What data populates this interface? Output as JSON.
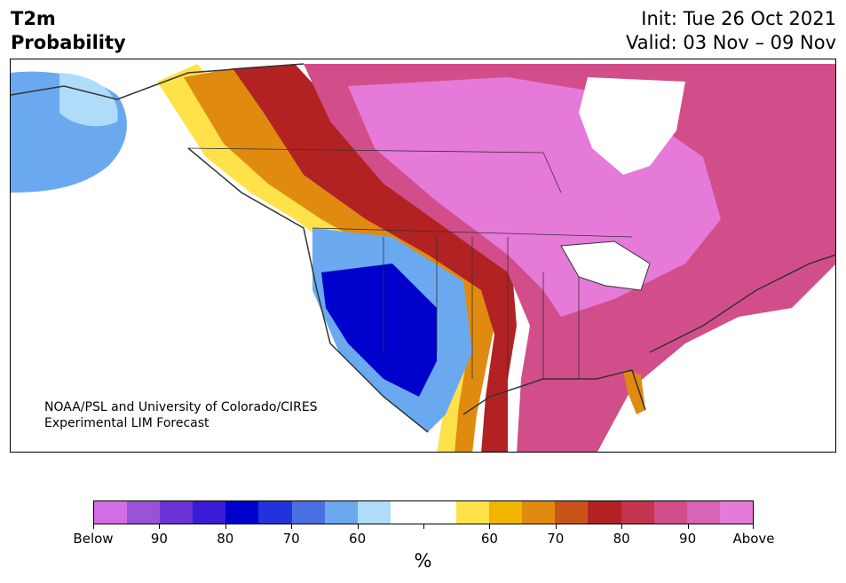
{
  "header": {
    "title_line1": "T2m",
    "title_line2": "Probability",
    "init_text": "Init: Tue 26 Oct 2021",
    "valid_text": "Valid: 03 Nov – 09 Nov"
  },
  "map": {
    "credit_line1": "NOAA/PSL and University of Colorado/CIRES",
    "credit_line2": "Experimental LIM Forecast"
  },
  "colorbar": {
    "colors": [
      "#d36de6",
      "#9a52d8",
      "#6a33d4",
      "#3a1bd6",
      "#0000cc",
      "#2233dd",
      "#4a6fe3",
      "#6aa9f0",
      "#aedcf9",
      "#ffffff",
      "#ffffff",
      "#ffe14a",
      "#f2b600",
      "#e08a10",
      "#c8541a",
      "#b22222",
      "#c4344e",
      "#d24e8a",
      "#d764b4",
      "#e57ad8"
    ],
    "tick_labels": [
      "Below",
      "90",
      "80",
      "70",
      "60",
      "",
      "60",
      "70",
      "80",
      "90",
      "Above"
    ],
    "units": "%"
  }
}
